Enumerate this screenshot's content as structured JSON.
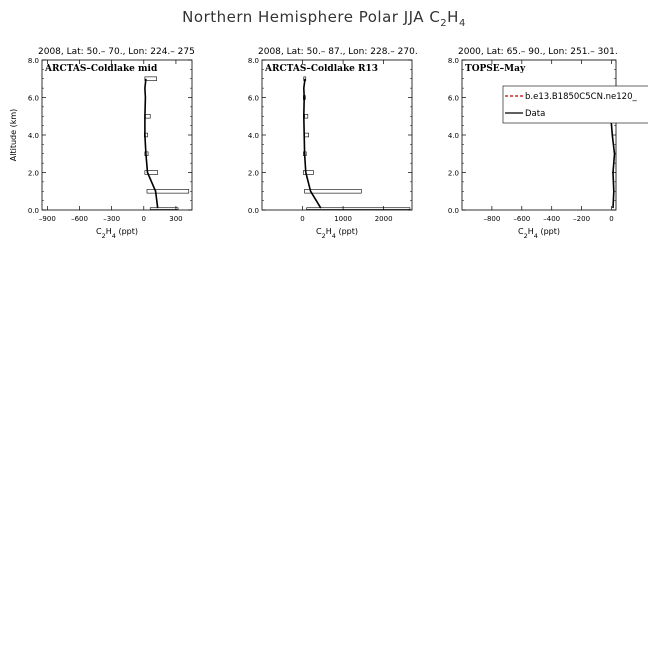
{
  "page": {
    "title": "Northern Hemisphere Polar JJA C",
    "title_sub1": "2",
    "title_mid": "H",
    "title_sub2": "4"
  },
  "chart_data": [
    {
      "type": "line",
      "header": "2008, Lat:  50.– 70., Lon: 224.– 275",
      "panel_label": "ARCTAS–Coldlake mid",
      "xlabel": "C2H4 (ppt)",
      "ylabel": "Altitude (km)",
      "xlim": [
        -950,
        450
      ],
      "ylim": [
        0,
        8
      ],
      "xticks": [
        -900,
        -600,
        -300,
        0,
        300
      ],
      "xtick_labels": [
        "–900",
        "–600",
        "–300",
        "0",
        "300"
      ],
      "yticks": [
        0,
        2,
        4,
        6,
        8
      ],
      "ytick_labels": [
        "0.0",
        "2.0",
        "4.0",
        "6.0",
        "8.0"
      ],
      "series": [
        {
          "type": "line",
          "color": "#000000",
          "x": [
            130,
            110,
            35,
            20,
            10,
            10,
            15,
            10,
            20
          ],
          "y": [
            0.1,
            1.0,
            2.0,
            3.0,
            4.0,
            5.0,
            6.0,
            6.5,
            7.0
          ]
        }
      ],
      "boxes": [
        {
          "x0": 60,
          "x1": 320,
          "y0": 0.03,
          "y1": 0.12
        },
        {
          "x0": 30,
          "x1": 420,
          "y0": 0.9,
          "y1": 1.1
        },
        {
          "x0": 10,
          "x1": 130,
          "y0": 1.9,
          "y1": 2.1
        },
        {
          "x0": 10,
          "x1": 40,
          "y0": 2.9,
          "y1": 3.1
        },
        {
          "x0": 5,
          "x1": 35,
          "y0": 3.9,
          "y1": 4.1
        },
        {
          "x0": 15,
          "x1": 60,
          "y0": 4.9,
          "y1": 5.1
        },
        {
          "x0": 10,
          "x1": 120,
          "y0": 6.9,
          "y1": 7.1
        }
      ]
    },
    {
      "type": "line",
      "header": "2008, Lat:  50.– 87., Lon: 228.– 270.",
      "panel_label": "ARCTAS–Coldlake R13",
      "xlabel": "C2H4 (ppt)",
      "ylabel": "",
      "xlim": [
        -1000,
        2700
      ],
      "ylim": [
        0,
        8
      ],
      "xticks": [
        0,
        1000,
        2000
      ],
      "xtick_labels": [
        "0",
        "1000",
        "2000"
      ],
      "yticks": [
        0,
        2,
        4,
        6,
        8
      ],
      "ytick_labels": [
        "0.0",
        "2.0",
        "4.0",
        "6.0",
        "8.0"
      ],
      "series": [
        {
          "type": "line",
          "color": "#000000",
          "x": [
            450,
            200,
            80,
            50,
            40,
            30,
            40,
            30,
            60
          ],
          "y": [
            0.1,
            1.0,
            2.0,
            3.0,
            4.0,
            5.0,
            6.0,
            6.5,
            7.0
          ]
        }
      ],
      "boxes": [
        {
          "x0": 100,
          "x1": 2650,
          "y0": 0.03,
          "y1": 0.12
        },
        {
          "x0": 50,
          "x1": 1450,
          "y0": 0.9,
          "y1": 1.1
        },
        {
          "x0": 20,
          "x1": 270,
          "y0": 1.9,
          "y1": 2.1
        },
        {
          "x0": 20,
          "x1": 90,
          "y0": 2.9,
          "y1": 3.1
        },
        {
          "x0": 40,
          "x1": 150,
          "y0": 3.9,
          "y1": 4.1
        },
        {
          "x0": 50,
          "x1": 130,
          "y0": 4.9,
          "y1": 5.1
        },
        {
          "x0": 20,
          "x1": 70,
          "y0": 5.9,
          "y1": 6.1
        },
        {
          "x0": 30,
          "x1": 80,
          "y0": 6.9,
          "y1": 7.1
        }
      ]
    },
    {
      "type": "line",
      "header": "2000, Lat: 65.– 90., Lon: 251.– 301.",
      "panel_label": "TOPSE–May",
      "xlabel": "C2H4 (ppt)",
      "ylabel": "",
      "xlim": [
        -1000,
        30
      ],
      "ylim": [
        0,
        8
      ],
      "xticks": [
        -800,
        -600,
        -400,
        -200,
        0
      ],
      "xtick_labels": [
        "–800",
        "–600",
        "–400",
        "–200",
        "0"
      ],
      "yticks": [
        0,
        2,
        4,
        6,
        8
      ],
      "ytick_labels": [
        "0.0",
        "2.0",
        "4.0",
        "6.0",
        "8.0"
      ],
      "series": [
        {
          "type": "line",
          "color": "#000000",
          "x": [
            10,
            15,
            10,
            20,
            5,
            -5
          ],
          "y": [
            0.1,
            1.0,
            2.0,
            3.0,
            4.0,
            5.0
          ]
        }
      ],
      "boxes": [],
      "legend": {
        "position": "top-right",
        "entries": [
          {
            "label": "b.e13.B1850C5CN.ne120_",
            "color": "#cc0000",
            "dash": "dashed"
          },
          {
            "label": "Data",
            "color": "#000000",
            "dash": "solid"
          }
        ]
      }
    }
  ]
}
